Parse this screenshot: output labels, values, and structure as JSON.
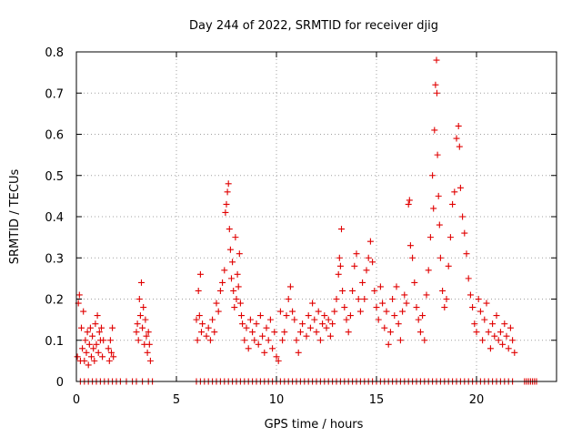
{
  "chart_data": {
    "type": "scatter",
    "title": "Day 244 of 2022, SRMTID for receiver djig",
    "xlabel": "GPS time / hours",
    "ylabel": "SRMTID / TECUs",
    "xlim": [
      0,
      24
    ],
    "ylim": [
      0,
      0.8
    ],
    "xticks": [
      "0",
      "5",
      "10",
      "15",
      "20"
    ],
    "xtick_values": [
      0,
      5,
      10,
      15,
      20
    ],
    "yticks": [
      "0",
      "0.1",
      "0.2",
      "0.3",
      "0.4",
      "0.5",
      "0.6",
      "0.7",
      "0.8"
    ],
    "ytick_values": [
      0,
      0.1,
      0.2,
      0.3,
      0.4,
      0.5,
      0.6,
      0.7,
      0.8
    ],
    "grid": true,
    "marker": "+",
    "color": "#e00000",
    "series": [
      {
        "name": "SRMTID",
        "points": [
          [
            0.05,
            0.06
          ],
          [
            0.1,
            0.19
          ],
          [
            0.15,
            0.21
          ],
          [
            0.2,
            0.05
          ],
          [
            0.25,
            0.13
          ],
          [
            0.3,
            0.08
          ],
          [
            0.35,
            0.17
          ],
          [
            0.4,
            0.05
          ],
          [
            0.45,
            0.1
          ],
          [
            0.5,
            0.07
          ],
          [
            0.55,
            0.12
          ],
          [
            0.6,
            0.04
          ],
          [
            0.65,
            0.09
          ],
          [
            0.7,
            0.13
          ],
          [
            0.75,
            0.06
          ],
          [
            0.8,
            0.11
          ],
          [
            0.85,
            0.08
          ],
          [
            0.9,
            0.05
          ],
          [
            0.95,
            0.14
          ],
          [
            1.0,
            0.09
          ],
          [
            1.05,
            0.16
          ],
          [
            1.1,
            0.07
          ],
          [
            1.15,
            0.12
          ],
          [
            1.2,
            0.1
          ],
          [
            1.25,
            0.13
          ],
          [
            1.3,
            0.06
          ],
          [
            1.35,
            0.1
          ],
          [
            1.6,
            0.08
          ],
          [
            1.65,
            0.05
          ],
          [
            1.7,
            0.1
          ],
          [
            1.75,
            0.07
          ],
          [
            1.8,
            0.13
          ],
          [
            1.85,
            0.06
          ],
          [
            3.0,
            0.12
          ],
          [
            3.05,
            0.14
          ],
          [
            3.1,
            0.1
          ],
          [
            3.15,
            0.2
          ],
          [
            3.2,
            0.16
          ],
          [
            3.25,
            0.24
          ],
          [
            3.3,
            0.13
          ],
          [
            3.35,
            0.18
          ],
          [
            3.4,
            0.09
          ],
          [
            3.45,
            0.15
          ],
          [
            3.5,
            0.11
          ],
          [
            3.55,
            0.07
          ],
          [
            3.6,
            0.12
          ],
          [
            3.65,
            0.09
          ],
          [
            3.7,
            0.05
          ],
          [
            6.0,
            0.15
          ],
          [
            6.05,
            0.1
          ],
          [
            6.1,
            0.22
          ],
          [
            6.15,
            0.16
          ],
          [
            6.2,
            0.26
          ],
          [
            6.25,
            0.12
          ],
          [
            6.3,
            0.14
          ],
          [
            6.5,
            0.11
          ],
          [
            6.6,
            0.13
          ],
          [
            6.7,
            0.1
          ],
          [
            6.8,
            0.15
          ],
          [
            6.9,
            0.12
          ],
          [
            7.0,
            0.19
          ],
          [
            7.1,
            0.17
          ],
          [
            7.2,
            0.22
          ],
          [
            7.3,
            0.24
          ],
          [
            7.4,
            0.27
          ],
          [
            7.45,
            0.41
          ],
          [
            7.5,
            0.43
          ],
          [
            7.55,
            0.46
          ],
          [
            7.6,
            0.48
          ],
          [
            7.65,
            0.37
          ],
          [
            7.7,
            0.32
          ],
          [
            7.75,
            0.25
          ],
          [
            7.8,
            0.29
          ],
          [
            7.85,
            0.22
          ],
          [
            7.9,
            0.18
          ],
          [
            7.95,
            0.35
          ],
          [
            8.0,
            0.2
          ],
          [
            8.05,
            0.26
          ],
          [
            8.1,
            0.23
          ],
          [
            8.15,
            0.31
          ],
          [
            8.2,
            0.19
          ],
          [
            8.25,
            0.16
          ],
          [
            8.3,
            0.14
          ],
          [
            8.4,
            0.1
          ],
          [
            8.5,
            0.13
          ],
          [
            8.6,
            0.08
          ],
          [
            8.7,
            0.15
          ],
          [
            8.8,
            0.12
          ],
          [
            8.9,
            0.1
          ],
          [
            9.0,
            0.14
          ],
          [
            9.1,
            0.09
          ],
          [
            9.2,
            0.16
          ],
          [
            9.3,
            0.11
          ],
          [
            9.4,
            0.07
          ],
          [
            9.5,
            0.13
          ],
          [
            9.6,
            0.1
          ],
          [
            9.7,
            0.15
          ],
          [
            9.8,
            0.08
          ],
          [
            9.9,
            0.12
          ],
          [
            10.0,
            0.06
          ],
          [
            10.1,
            0.05
          ],
          [
            10.2,
            0.17
          ],
          [
            10.3,
            0.1
          ],
          [
            10.4,
            0.12
          ],
          [
            10.5,
            0.16
          ],
          [
            10.6,
            0.2
          ],
          [
            10.7,
            0.23
          ],
          [
            10.8,
            0.17
          ],
          [
            10.9,
            0.15
          ],
          [
            11.0,
            0.1
          ],
          [
            11.1,
            0.07
          ],
          [
            11.2,
            0.12
          ],
          [
            11.3,
            0.14
          ],
          [
            11.5,
            0.11
          ],
          [
            11.6,
            0.16
          ],
          [
            11.7,
            0.13
          ],
          [
            11.8,
            0.19
          ],
          [
            11.9,
            0.15
          ],
          [
            12.0,
            0.12
          ],
          [
            12.1,
            0.17
          ],
          [
            12.2,
            0.1
          ],
          [
            12.3,
            0.14
          ],
          [
            12.4,
            0.16
          ],
          [
            12.5,
            0.13
          ],
          [
            12.6,
            0.15
          ],
          [
            12.7,
            0.11
          ],
          [
            12.8,
            0.14
          ],
          [
            12.9,
            0.17
          ],
          [
            13.0,
            0.2
          ],
          [
            13.1,
            0.26
          ],
          [
            13.15,
            0.3
          ],
          [
            13.2,
            0.28
          ],
          [
            13.25,
            0.37
          ],
          [
            13.3,
            0.22
          ],
          [
            13.4,
            0.18
          ],
          [
            13.5,
            0.15
          ],
          [
            13.6,
            0.12
          ],
          [
            13.7,
            0.16
          ],
          [
            13.8,
            0.22
          ],
          [
            13.9,
            0.28
          ],
          [
            14.0,
            0.31
          ],
          [
            14.1,
            0.2
          ],
          [
            14.2,
            0.17
          ],
          [
            14.3,
            0.24
          ],
          [
            14.4,
            0.2
          ],
          [
            14.5,
            0.27
          ],
          [
            14.6,
            0.3
          ],
          [
            14.7,
            0.34
          ],
          [
            14.8,
            0.29
          ],
          [
            14.9,
            0.22
          ],
          [
            15.0,
            0.18
          ],
          [
            15.1,
            0.15
          ],
          [
            15.2,
            0.23
          ],
          [
            15.3,
            0.19
          ],
          [
            15.4,
            0.13
          ],
          [
            15.5,
            0.17
          ],
          [
            15.6,
            0.09
          ],
          [
            15.7,
            0.12
          ],
          [
            15.8,
            0.2
          ],
          [
            15.9,
            0.16
          ],
          [
            16.0,
            0.23
          ],
          [
            16.1,
            0.14
          ],
          [
            16.2,
            0.1
          ],
          [
            16.3,
            0.17
          ],
          [
            16.4,
            0.21
          ],
          [
            16.5,
            0.19
          ],
          [
            16.6,
            0.43
          ],
          [
            16.65,
            0.44
          ],
          [
            16.7,
            0.33
          ],
          [
            16.8,
            0.3
          ],
          [
            16.9,
            0.24
          ],
          [
            17.0,
            0.18
          ],
          [
            17.1,
            0.15
          ],
          [
            17.2,
            0.12
          ],
          [
            17.3,
            0.16
          ],
          [
            17.4,
            0.1
          ],
          [
            17.5,
            0.21
          ],
          [
            17.6,
            0.27
          ],
          [
            17.7,
            0.35
          ],
          [
            17.8,
            0.5
          ],
          [
            17.85,
            0.42
          ],
          [
            17.9,
            0.61
          ],
          [
            17.95,
            0.72
          ],
          [
            18.0,
            0.78
          ],
          [
            18.02,
            0.7
          ],
          [
            18.05,
            0.55
          ],
          [
            18.1,
            0.45
          ],
          [
            18.15,
            0.38
          ],
          [
            18.2,
            0.3
          ],
          [
            18.3,
            0.22
          ],
          [
            18.4,
            0.18
          ],
          [
            18.5,
            0.2
          ],
          [
            18.6,
            0.28
          ],
          [
            18.7,
            0.35
          ],
          [
            18.8,
            0.43
          ],
          [
            18.9,
            0.46
          ],
          [
            19.0,
            0.59
          ],
          [
            19.1,
            0.62
          ],
          [
            19.15,
            0.57
          ],
          [
            19.2,
            0.47
          ],
          [
            19.3,
            0.4
          ],
          [
            19.4,
            0.36
          ],
          [
            19.5,
            0.31
          ],
          [
            19.6,
            0.25
          ],
          [
            19.7,
            0.21
          ],
          [
            19.8,
            0.18
          ],
          [
            19.9,
            0.14
          ],
          [
            20.0,
            0.12
          ],
          [
            20.1,
            0.2
          ],
          [
            20.2,
            0.17
          ],
          [
            20.3,
            0.1
          ],
          [
            20.4,
            0.15
          ],
          [
            20.5,
            0.19
          ],
          [
            20.6,
            0.12
          ],
          [
            20.7,
            0.08
          ],
          [
            20.8,
            0.14
          ],
          [
            20.9,
            0.11
          ],
          [
            21.0,
            0.16
          ],
          [
            21.1,
            0.1
          ],
          [
            21.2,
            0.12
          ],
          [
            21.3,
            0.09
          ],
          [
            21.4,
            0.14
          ],
          [
            21.5,
            0.11
          ],
          [
            21.6,
            0.08
          ],
          [
            21.7,
            0.13
          ],
          [
            21.8,
            0.1
          ],
          [
            21.9,
            0.07
          ]
        ]
      }
    ],
    "zero_marks": [
      0.2,
      0.4,
      0.6,
      0.8,
      1.0,
      1.2,
      1.4,
      1.6,
      1.8,
      2.0,
      2.2,
      2.5,
      2.8,
      3.0,
      3.3,
      3.6,
      3.8,
      6.0,
      6.2,
      6.4,
      6.6,
      6.8,
      7.0,
      7.2,
      7.4,
      7.6,
      7.8,
      8.0,
      8.2,
      8.4,
      8.6,
      8.8,
      9.0,
      9.2,
      9.4,
      9.6,
      9.8,
      10.0,
      10.2,
      10.4,
      10.6,
      10.8,
      11.0,
      11.2,
      11.4,
      11.6,
      11.8,
      12.0,
      12.2,
      12.4,
      12.6,
      12.8,
      13.0,
      13.2,
      13.4,
      13.6,
      13.8,
      14.0,
      14.2,
      14.4,
      14.6,
      14.8,
      15.0,
      15.2,
      15.4,
      15.6,
      15.8,
      16.0,
      16.2,
      16.4,
      16.6,
      16.8,
      17.0,
      17.2,
      17.4,
      17.6,
      17.8,
      18.0,
      18.2,
      18.4,
      18.6,
      18.8,
      19.0,
      19.2,
      19.4,
      19.6,
      19.8,
      20.0,
      20.2,
      20.4,
      20.6,
      20.8,
      21.0,
      21.2,
      21.4,
      21.6,
      21.8,
      22.4,
      22.5,
      22.6,
      22.7,
      22.8,
      22.9,
      23.0
    ]
  }
}
